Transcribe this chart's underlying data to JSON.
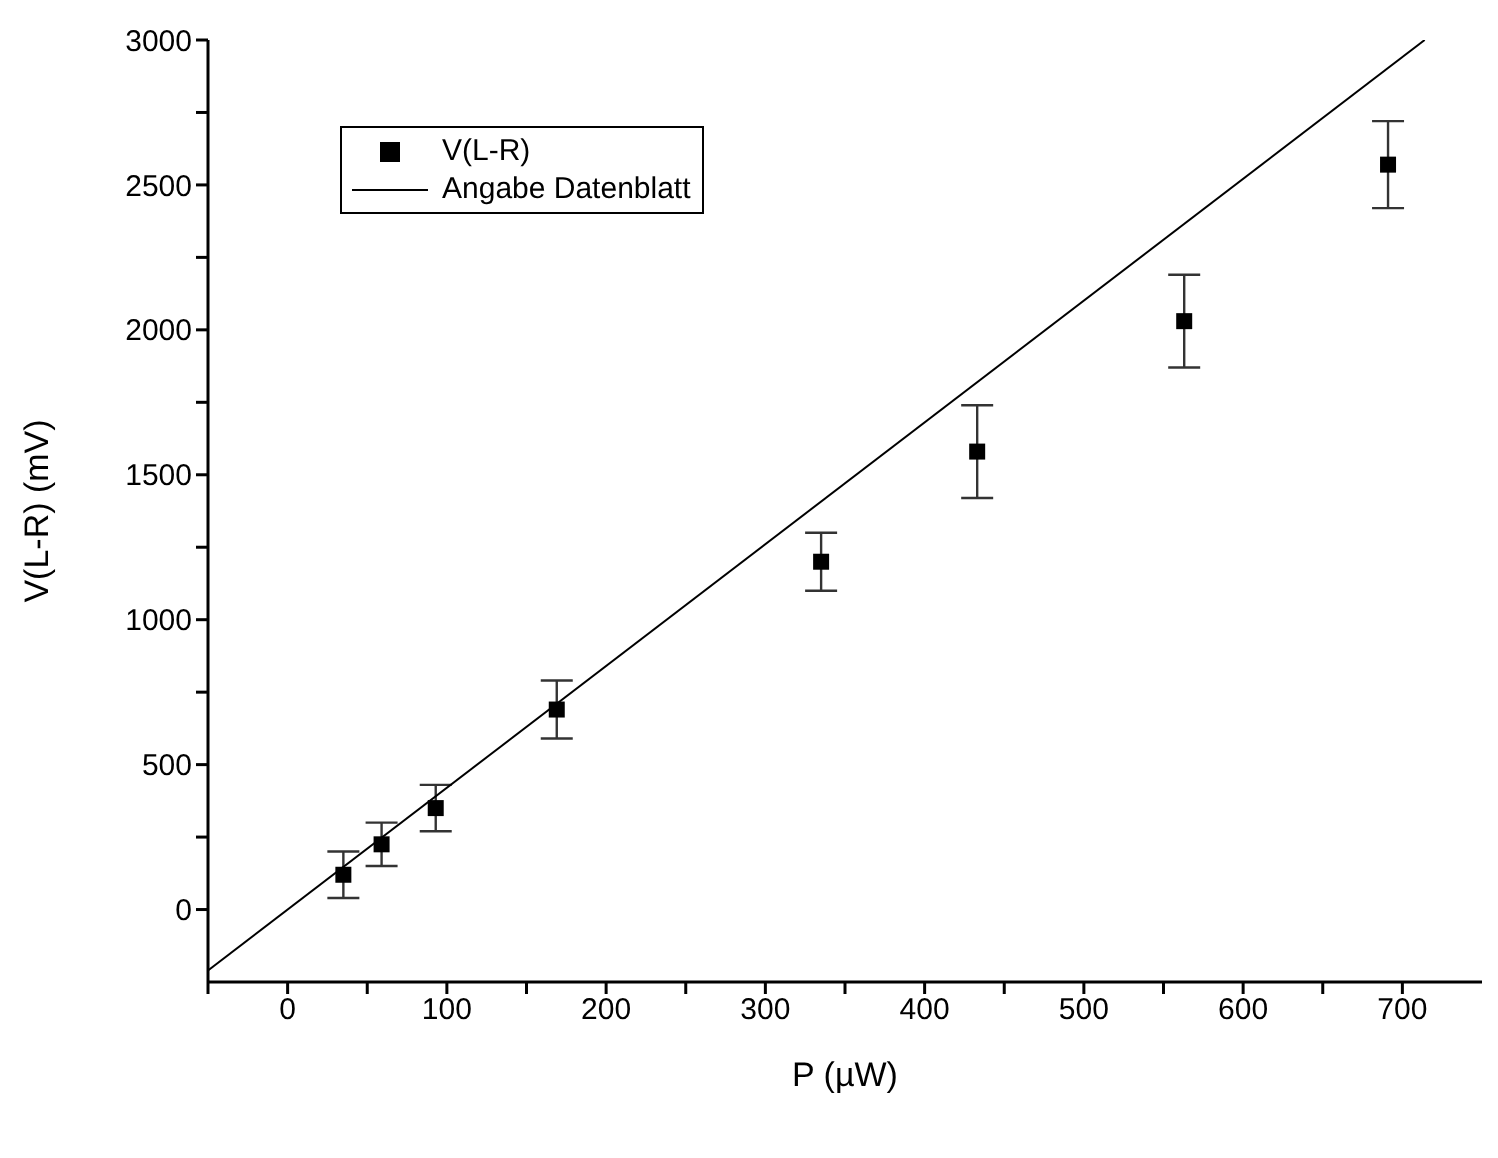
{
  "chart_data": {
    "type": "scatter",
    "xlabel": "P (µW)",
    "ylabel": "V(L-R) (mV)",
    "xlim": [
      -50,
      750
    ],
    "ylim": [
      -250,
      3000
    ],
    "xticks": [
      {
        "value": -50,
        "label": null
      },
      0,
      {
        "value": 50,
        "label": null
      },
      100,
      {
        "value": 150,
        "label": null
      },
      200,
      {
        "value": 250,
        "label": null
      },
      300,
      {
        "value": 350,
        "label": null
      },
      400,
      {
        "value": 450,
        "label": null
      },
      500,
      {
        "value": 550,
        "label": null
      },
      600,
      {
        "value": 650,
        "label": null
      },
      700
    ],
    "yticks": [
      0,
      {
        "value": 250,
        "label": null
      },
      500,
      {
        "value": 750,
        "label": null
      },
      1000,
      {
        "value": 1250,
        "label": null
      },
      1500,
      {
        "value": 1750,
        "label": null
      },
      2000,
      {
        "value": 2250,
        "label": null
      },
      2500,
      {
        "value": 2750,
        "label": null
      },
      3000
    ],
    "legend": "top left",
    "series": [
      {
        "name": "V(L-R)",
        "marker": "square",
        "color": "#000000",
        "x": [
          35,
          59,
          93,
          169,
          335,
          433,
          563,
          691
        ],
        "values": [
          120,
          225,
          350,
          690,
          1200,
          1580,
          2030,
          2570
        ],
        "errors": [
          80,
          75,
          80,
          100,
          100,
          160,
          160,
          150
        ]
      },
      {
        "name": "Angabe Datenblatt",
        "type": "line",
        "line_style": "solid",
        "color": "#000000",
        "x": [
          -50,
          714
        ],
        "values": [
          -210,
          3000
        ]
      }
    ]
  }
}
